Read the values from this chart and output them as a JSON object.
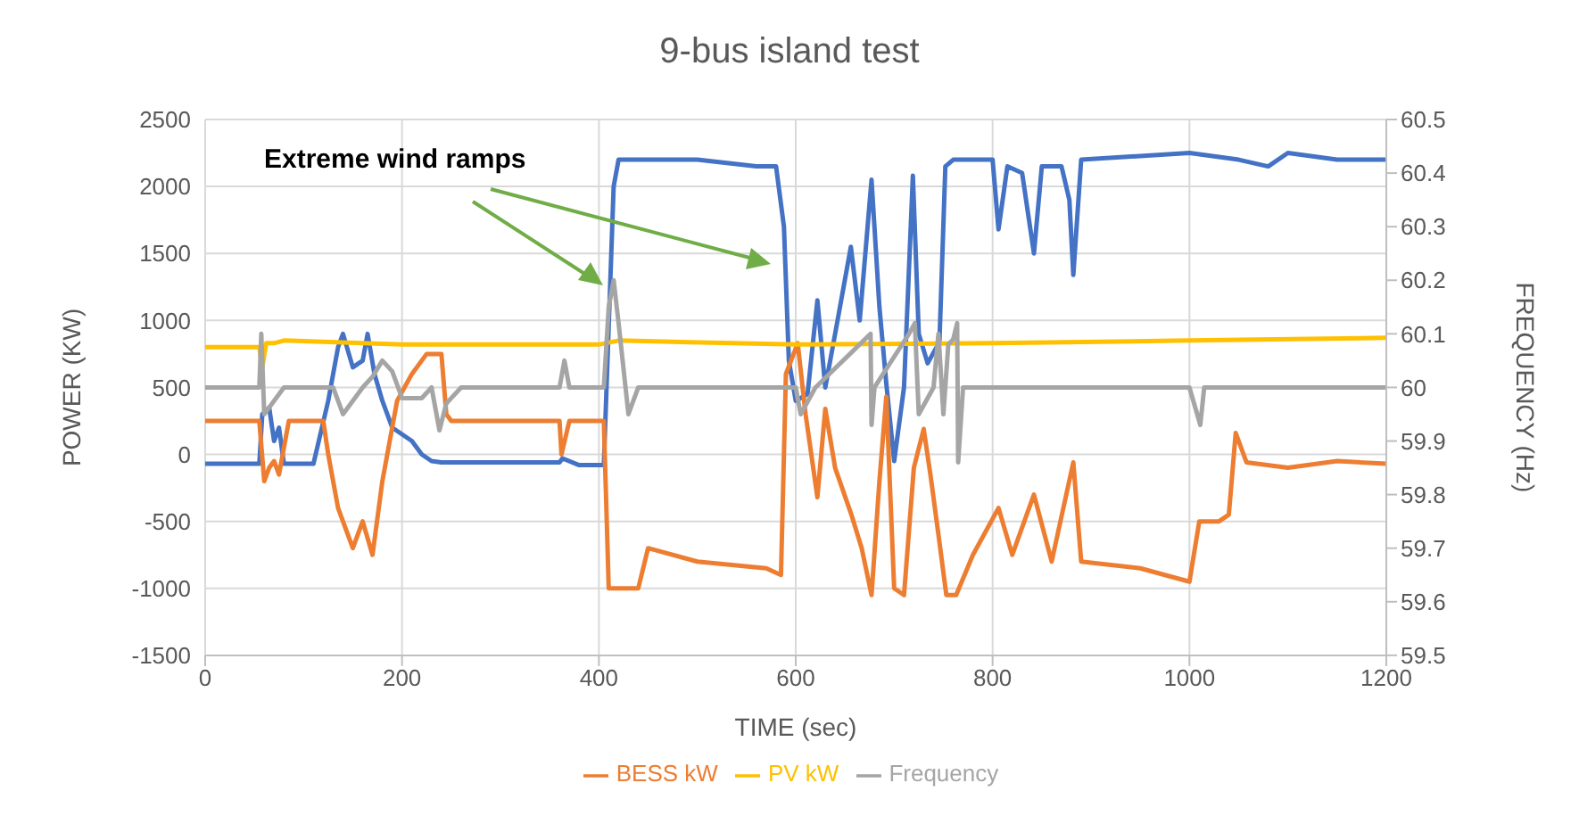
{
  "chart_data": {
    "type": "line",
    "title": "9-bus island test",
    "xlabel": "TIME (sec)",
    "ylabel": "POWER (KW)",
    "y2label": "FREQUENCY (Hz)",
    "xlim": [
      0,
      1200
    ],
    "xticks": [
      0,
      200,
      400,
      600,
      800,
      1000,
      1200
    ],
    "ylim": [
      -1500,
      2500
    ],
    "yticks": [
      -1500,
      -1000,
      -500,
      0,
      500,
      1000,
      1500,
      2000,
      2500
    ],
    "y2lim": [
      59.5,
      60.5
    ],
    "y2ticks": [
      59.5,
      59.6,
      59.7,
      59.8,
      59.9,
      60,
      60.1,
      60.2,
      60.3,
      60.4,
      60.5
    ],
    "grid": true,
    "legend": "bottom",
    "marker": "none",
    "line_style": "solid",
    "annotations": [
      "Extreme wind ramps"
    ],
    "series": [
      {
        "color": "#4472c4",
        "x": [
          0,
          55,
          58,
          65,
          70,
          75,
          80,
          110,
          125,
          135,
          140,
          150,
          160,
          165,
          172,
          180,
          190,
          200,
          210,
          220,
          230,
          240,
          300,
          360,
          363,
          380,
          405,
          415,
          420,
          500,
          560,
          580,
          588,
          593,
          600,
          612,
          622,
          630,
          640,
          656,
          665,
          677,
          685,
          692,
          700,
          710,
          719,
          725,
          734,
          746,
          752,
          760,
          800,
          806,
          815,
          830,
          842,
          850,
          870,
          878,
          882,
          890,
          1000,
          1050,
          1080,
          1100,
          1150,
          1200
        ],
        "values": [
          -70,
          -70,
          300,
          350,
          100,
          200,
          -70,
          -70,
          400,
          800,
          900,
          650,
          700,
          900,
          600,
          400,
          200,
          150,
          100,
          0,
          -50,
          -60,
          -60,
          -60,
          -30,
          -80,
          -80,
          2000,
          2200,
          2200,
          2150,
          2150,
          1700,
          700,
          400,
          450,
          1150,
          500,
          900,
          1550,
          1000,
          2050,
          1100,
          530,
          -50,
          500,
          2080,
          900,
          680,
          840,
          2150,
          2200,
          2200,
          1680,
          2150,
          2100,
          1500,
          2150,
          2150,
          1900,
          1340,
          2200,
          2250,
          2200,
          2150,
          2250,
          2200,
          2200
        ]
      },
      {
        "name": "BESS kW",
        "color": "#ed7d31",
        "x": [
          0,
          55,
          60,
          65,
          70,
          75,
          85,
          120,
          125,
          135,
          150,
          160,
          170,
          180,
          195,
          210,
          225,
          240,
          245,
          250,
          300,
          360,
          362,
          370,
          405,
          410,
          440,
          450,
          500,
          570,
          585,
          590,
          602,
          610,
          622,
          630,
          640,
          657,
          667,
          677,
          685,
          692,
          700,
          710,
          720,
          730,
          737,
          745,
          753,
          763,
          780,
          806,
          820,
          842,
          860,
          882,
          890,
          950,
          1000,
          1010,
          1030,
          1040,
          1047,
          1058,
          1100,
          1150,
          1200
        ],
        "values": [
          250,
          250,
          -200,
          -100,
          -50,
          -150,
          250,
          250,
          0,
          -400,
          -700,
          -500,
          -750,
          -200,
          400,
          600,
          750,
          750,
          300,
          250,
          250,
          250,
          0,
          250,
          250,
          -1000,
          -1000,
          -700,
          -800,
          -850,
          -900,
          600,
          830,
          300,
          -320,
          340,
          -100,
          -460,
          -700,
          -1050,
          -200,
          430,
          -1000,
          -1050,
          -100,
          190,
          -160,
          -600,
          -1050,
          -1050,
          -750,
          -400,
          -750,
          -300,
          -800,
          -60,
          -800,
          -850,
          -950,
          -500,
          -500,
          -450,
          160,
          -60,
          -100,
          -50,
          -70
        ]
      },
      {
        "name": "PV kW",
        "color": "#ffc000",
        "x": [
          0,
          55,
          58,
          62,
          70,
          80,
          200,
          400,
          420,
          600,
          800,
          1000,
          1200
        ],
        "values": [
          800,
          800,
          650,
          830,
          830,
          850,
          820,
          820,
          850,
          820,
          830,
          850,
          870
        ]
      },
      {
        "name": "Frequency",
        "color": "#a5a5a5",
        "axis": "y2",
        "x": [
          0,
          55,
          57,
          60,
          80,
          130,
          140,
          160,
          170,
          180,
          190,
          200,
          220,
          230,
          238,
          245,
          260,
          360,
          365,
          370,
          405,
          410,
          415,
          420,
          430,
          440,
          600,
          605,
          620,
          676,
          677,
          680,
          715,
          721,
          725,
          740,
          745,
          750,
          755,
          760,
          764,
          765,
          770,
          1000,
          1011,
          1015,
          1200
        ],
        "values": [
          60,
          60,
          60.1,
          59.95,
          60,
          60,
          59.95,
          60,
          60.02,
          60.05,
          60.03,
          59.98,
          59.98,
          60,
          59.92,
          59.97,
          60,
          60,
          60.05,
          60,
          60,
          60.15,
          60.2,
          60.12,
          59.95,
          60,
          60,
          59.95,
          60,
          60.1,
          59.93,
          60,
          60.1,
          60.12,
          59.95,
          60,
          60.1,
          59.95,
          60.08,
          60.09,
          60.12,
          59.86,
          60,
          60,
          59.93,
          60,
          60
        ]
      }
    ]
  }
}
